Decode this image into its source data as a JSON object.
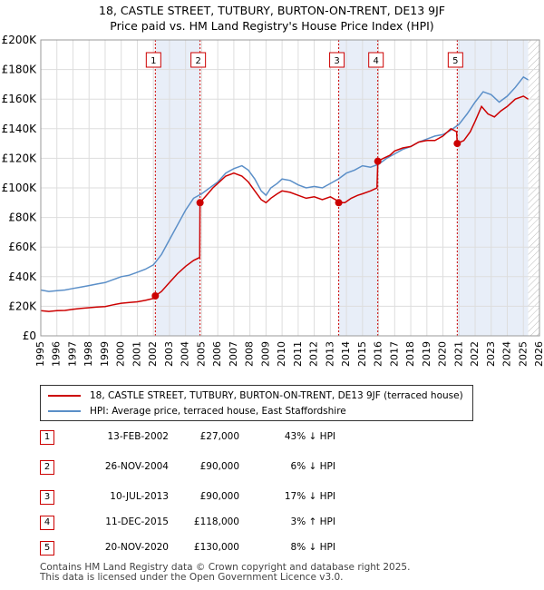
{
  "title_line1": "18, CASTLE STREET, TUTBURY, BURTON-ON-TRENT, DE13 9JF",
  "title_line2": "Price paid vs. HM Land Registry's House Price Index (HPI)",
  "colors": {
    "price_line": "#cc0000",
    "hpi_line": "#5b8fc8",
    "shade": "#e8eef8",
    "marker": "#cc0000",
    "grid": "#dddddd"
  },
  "legend": {
    "price_label": "18, CASTLE STREET, TUTBURY, BURTON-ON-TRENT, DE13 9JF (terraced house)",
    "hpi_label": "HPI: Average price, terraced house, East Staffordshire"
  },
  "sales": [
    {
      "num": "1",
      "date": "13-FEB-2002",
      "price": "£27,000",
      "hpi": "43% ↓ HPI"
    },
    {
      "num": "2",
      "date": "26-NOV-2004",
      "price": "£90,000",
      "hpi": "6% ↓ HPI"
    },
    {
      "num": "3",
      "date": "10-JUL-2013",
      "price": "£90,000",
      "hpi": "17% ↓ HPI"
    },
    {
      "num": "4",
      "date": "11-DEC-2015",
      "price": "£118,000",
      "hpi": "3% ↑ HPI"
    },
    {
      "num": "5",
      "date": "20-NOV-2020",
      "price": "£130,000",
      "hpi": "8% ↓ HPI"
    }
  ],
  "footer_line1": "Contains HM Land Registry data © Crown copyright and database right 2025.",
  "footer_line2": "This data is licensed under the Open Government Licence v3.0.",
  "chart_data": {
    "type": "line",
    "title": "18, CASTLE STREET, TUTBURY, BURTON-ON-TRENT, DE13 9JF",
    "subtitle": "Price paid vs. HM Land Registry's House Price Index (HPI)",
    "xlim": [
      1995,
      2026
    ],
    "ylim": [
      0,
      200000
    ],
    "x_ticks": [
      1995,
      1996,
      1997,
      1998,
      1999,
      2000,
      2001,
      2002,
      2003,
      2004,
      2005,
      2006,
      2007,
      2008,
      2009,
      2010,
      2011,
      2012,
      2013,
      2014,
      2015,
      2016,
      2017,
      2018,
      2019,
      2020,
      2021,
      2022,
      2023,
      2024,
      2025,
      2026
    ],
    "y_ticks": [
      0,
      20000,
      40000,
      60000,
      80000,
      100000,
      120000,
      140000,
      160000,
      180000,
      200000
    ],
    "y_tick_labels": [
      "£0",
      "£20K",
      "£40K",
      "£60K",
      "£80K",
      "£100K",
      "£120K",
      "£140K",
      "£160K",
      "£180K",
      "£200K"
    ],
    "shaded_ranges": [
      [
        2002.12,
        2004.9
      ],
      [
        2013.52,
        2015.95
      ],
      [
        2020.89,
        2025.3
      ]
    ],
    "hatched_from": 2025.3,
    "sale_points": [
      {
        "label": "1",
        "x": 2002.12,
        "y": 27000
      },
      {
        "label": "2",
        "x": 2004.9,
        "y": 90000
      },
      {
        "label": "3",
        "x": 2013.52,
        "y": 90000
      },
      {
        "label": "4",
        "x": 2015.95,
        "y": 118000
      },
      {
        "label": "5",
        "x": 2020.89,
        "y": 130000
      }
    ],
    "series": [
      {
        "name": "18, CASTLE STREET, TUTBURY, BURTON-ON-TRENT, DE13 9JF (terraced house)",
        "x": [
          1995,
          1995.5,
          1996,
          1996.5,
          1997,
          1997.5,
          1998,
          1998.5,
          1999,
          1999.5,
          2000,
          2000.5,
          2001,
          2001.5,
          2002.1,
          2002.12,
          2002.5,
          2003,
          2003.5,
          2004,
          2004.5,
          2004.88,
          2004.9,
          2005.3,
          2005.7,
          2006,
          2006.5,
          2007,
          2007.5,
          2007.9,
          2008.3,
          2008.7,
          2009,
          2009.3,
          2009.7,
          2010,
          2010.5,
          2011,
          2011.5,
          2012,
          2012.5,
          2013,
          2013.5,
          2013.52,
          2013.9,
          2014.3,
          2014.7,
          2015,
          2015.5,
          2015.9,
          2015.95,
          2016.3,
          2016.7,
          2017,
          2017.5,
          2018,
          2018.5,
          2019,
          2019.5,
          2020,
          2020.5,
          2020.85,
          2020.89,
          2021.3,
          2021.7,
          2022,
          2022.4,
          2022.8,
          2023.2,
          2023.6,
          2024,
          2024.5,
          2025,
          2025.3
        ],
        "y": [
          17000,
          16500,
          17000,
          17200,
          18000,
          18500,
          19000,
          19500,
          19800,
          21000,
          22000,
          22500,
          23000,
          24000,
          25500,
          27000,
          30000,
          36000,
          42000,
          47000,
          51000,
          53000,
          90000,
          95000,
          100000,
          103000,
          108000,
          110000,
          108000,
          104000,
          98000,
          92000,
          90000,
          93000,
          96000,
          98000,
          97000,
          95000,
          93000,
          94000,
          92000,
          94000,
          91000,
          90000,
          90000,
          93000,
          95000,
          96000,
          98000,
          100000,
          118000,
          120000,
          122000,
          125000,
          127000,
          128000,
          131000,
          132000,
          132000,
          135000,
          140000,
          138000,
          130000,
          132000,
          138000,
          145000,
          155000,
          150000,
          148000,
          152000,
          155000,
          160000,
          162000,
          160000
        ]
      },
      {
        "name": "HPI: Average price, terraced house, East Staffordshire",
        "x": [
          1995,
          1995.5,
          1996,
          1996.5,
          1997,
          1997.5,
          1998,
          1998.5,
          1999,
          1999.5,
          2000,
          2000.5,
          2001,
          2001.5,
          2002,
          2002.5,
          2003,
          2003.5,
          2004,
          2004.5,
          2005,
          2005.5,
          2006,
          2006.5,
          2007,
          2007.5,
          2007.9,
          2008.3,
          2008.7,
          2009,
          2009.3,
          2009.7,
          2010,
          2010.5,
          2011,
          2011.5,
          2012,
          2012.5,
          2013,
          2013.5,
          2014,
          2014.5,
          2015,
          2015.5,
          2016,
          2016.5,
          2017,
          2017.5,
          2018,
          2018.5,
          2019,
          2019.5,
          2020,
          2020.5,
          2021,
          2021.5,
          2022,
          2022.5,
          2023,
          2023.5,
          2024,
          2024.5,
          2025,
          2025.3
        ],
        "y": [
          31000,
          30000,
          30500,
          31000,
          32000,
          33000,
          34000,
          35000,
          36000,
          38000,
          40000,
          41000,
          43000,
          45000,
          48000,
          55000,
          65000,
          75000,
          85000,
          93000,
          96000,
          100000,
          104000,
          110000,
          113000,
          115000,
          112000,
          106000,
          98000,
          95000,
          100000,
          103000,
          106000,
          105000,
          102000,
          100000,
          101000,
          100000,
          103000,
          106000,
          110000,
          112000,
          115000,
          114000,
          116000,
          120000,
          123000,
          126000,
          128000,
          131000,
          133000,
          135000,
          136000,
          139000,
          143000,
          150000,
          158000,
          165000,
          163000,
          158000,
          162000,
          168000,
          175000,
          173000
        ]
      }
    ]
  }
}
